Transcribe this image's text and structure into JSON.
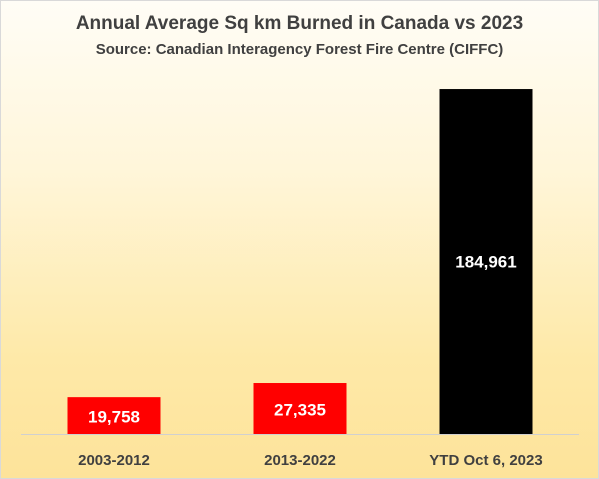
{
  "chart_data": {
    "type": "bar",
    "title": "Annual Average Sq km Burned in Canada vs 2023",
    "subtitle": "Source: Canadian Interagency Forest Fire Centre (CIFFC)",
    "categories": [
      "2003-2012",
      "2013-2022",
      "YTD Oct 6, 2023"
    ],
    "values": [
      19758,
      27335,
      184961
    ],
    "value_labels": [
      "19,758",
      "27,335",
      "184,961"
    ],
    "bar_colors": [
      "#ff0000",
      "#ff0000",
      "#000000"
    ],
    "value_label_color": "#ffffff",
    "category_label_color": "#404040",
    "xlabel": "",
    "ylabel": "",
    "ylim": [
      0,
      200000
    ],
    "grid": false,
    "legend": "none"
  }
}
